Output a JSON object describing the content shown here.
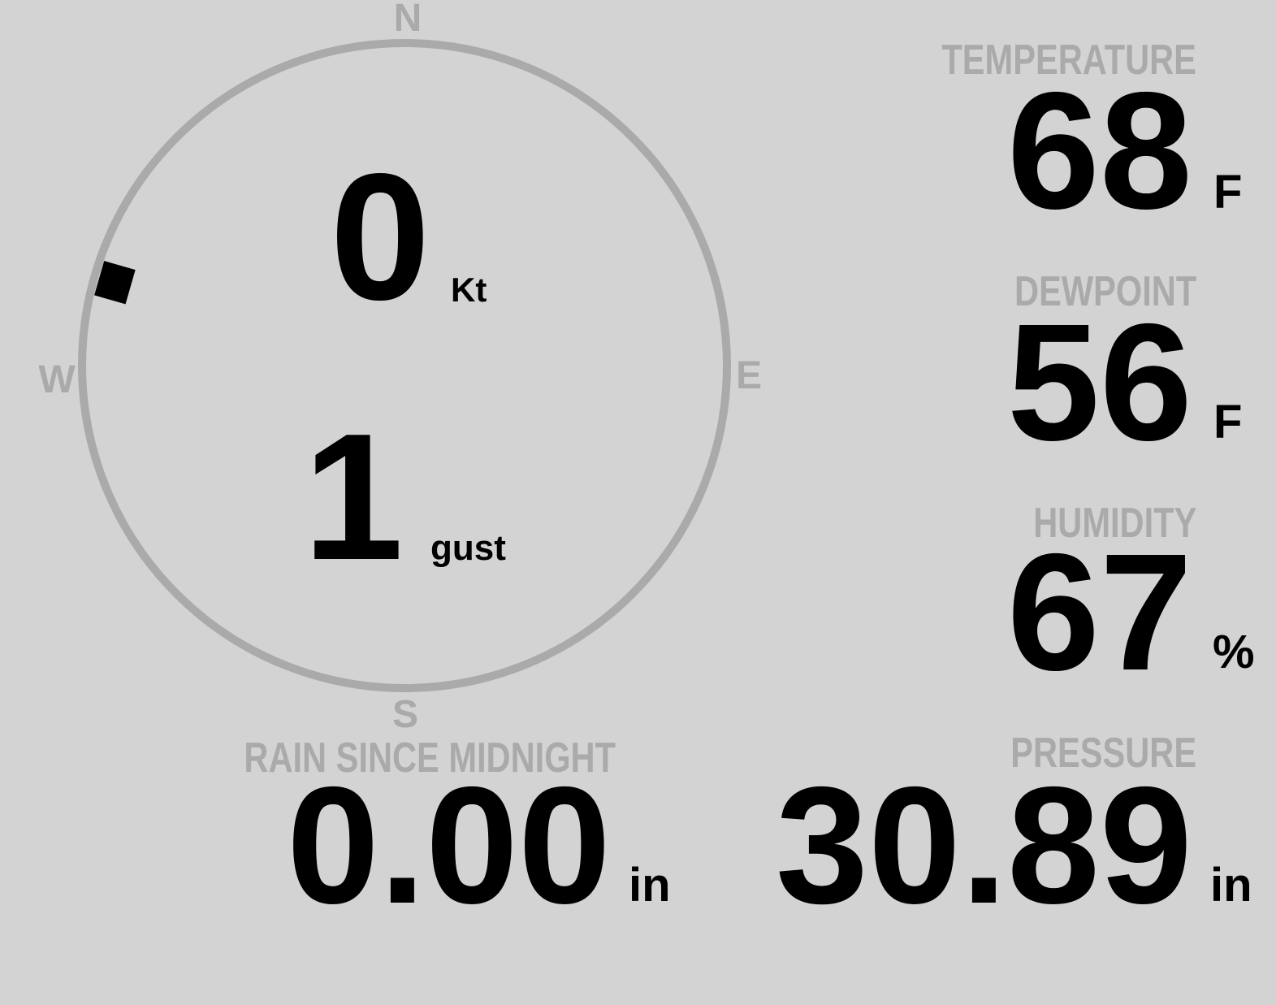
{
  "colors": {
    "background": "#d3d3d3",
    "label": "#aaaaaa",
    "value": "#000000",
    "ring": "#aaaaaa",
    "marker": "#000000"
  },
  "wind": {
    "cardinals": {
      "n": "N",
      "e": "E",
      "s": "S",
      "w": "W"
    },
    "direction_deg": 286,
    "speed": "0",
    "speed_unit": "Kt",
    "gust": "1",
    "gust_unit": "gust"
  },
  "temperature": {
    "label": "TEMPERATURE",
    "value": "68",
    "unit": "F"
  },
  "dewpoint": {
    "label": "DEWPOINT",
    "value": "56",
    "unit": "F"
  },
  "humidity": {
    "label": "HUMIDITY",
    "value": "67",
    "unit": "%"
  },
  "pressure": {
    "label": "PRESSURE",
    "value": "30.89",
    "unit": "in"
  },
  "rain": {
    "label": "RAIN SINCE MIDNIGHT",
    "value": "0.00",
    "unit": "in"
  }
}
